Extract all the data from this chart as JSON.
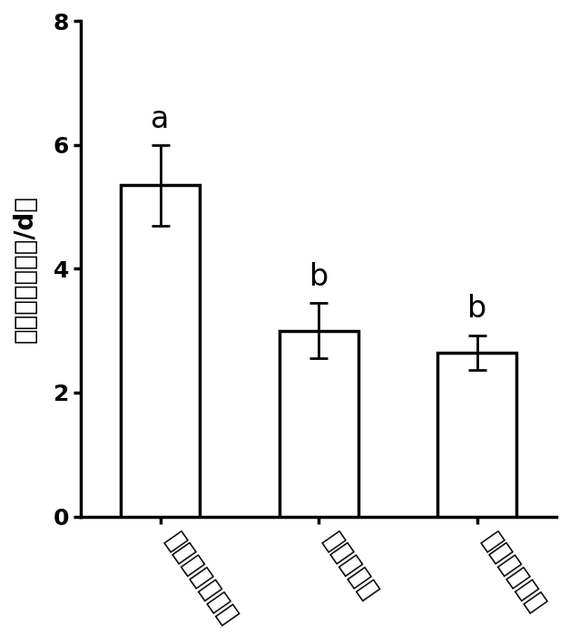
{
  "categories": [
    "新小维新小维螨",
    "斯氏鹈维螨",
    "胡瓜新小维螨"
  ],
  "values": [
    5.35,
    3.0,
    2.65
  ],
  "errors": [
    0.65,
    0.45,
    0.28
  ],
  "letters": [
    "a",
    "b",
    "b"
  ],
  "bar_color": "#ffffff",
  "bar_edgecolor": "#000000",
  "bar_linewidth": 2.5,
  "bar_width": 0.5,
  "ylabel": "日均捕食量（头/d）",
  "ylim": [
    0,
    8
  ],
  "yticks": [
    0,
    2,
    4,
    6,
    8
  ],
  "letter_fontsize": 24,
  "ylabel_fontsize": 20,
  "tick_fontsize": 18,
  "xtick_fontsize": 20,
  "capsize": 7,
  "error_linewidth": 2.0,
  "background_color": "#ffffff",
  "label_rotation": -55
}
